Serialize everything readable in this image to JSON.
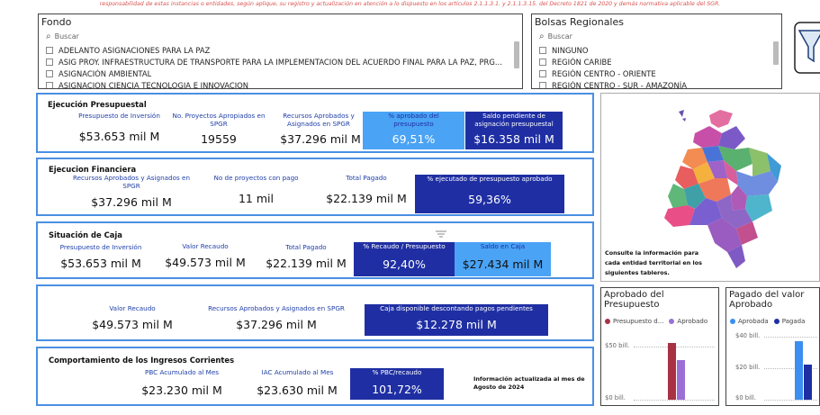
{
  "disclaimer": "responsabilidad de estas instancias o entidades, según aplique, su registro y actualización en atención a lo dispuesto en los artículos 2.1.1.3.1. y 2.1.1.3.15. del Decreto 1821 de 2020 y demás normativa aplicable del SGR.",
  "fondo": {
    "title": "Fondo",
    "search_placeholder": "Buscar",
    "options": [
      "ADELANTO ASIGNACIONES PARA LA PAZ",
      "ASIG PROY. INFRAESTRUCTURA DE TRANSPORTE PARA LA IMPLEMENTACION DEL ACUERDO FINAL PARA LA PAZ, PRG...",
      "ASIGNACIÓN AMBIENTAL",
      "ASIGNACION CIENCIA TECNOLOGIA E INNOVACION"
    ]
  },
  "bolsas": {
    "title": "Bolsas Regionales",
    "search_placeholder": "Buscar",
    "options": [
      "NINGUNO",
      "REGIÓN CARIBE",
      "REGIÓN CENTRO - ORIENTE",
      "REGIÓN CENTRO - SUR - AMAZONÍA"
    ]
  },
  "ejecucion_presupuestal": {
    "title": "Ejecución Presupuestal",
    "kpis": [
      {
        "label": "Presupuesto de Inversión",
        "value": "$53.653 mil M"
      },
      {
        "label": "No. Proyectos Apropiados en SPGR",
        "value": "19559"
      },
      {
        "label": "Recursos Aprobados y Asignados en SPGR",
        "value": "$37.296 mil M"
      },
      {
        "label": "% aprobado del presupuesto",
        "value": "69,51%"
      },
      {
        "label": "Saldo pendiente de asignación presupuestal",
        "value": "$16.358 mil M"
      }
    ]
  },
  "ejecucion_financiera": {
    "title": "Ejecucion Financiera",
    "kpis": [
      {
        "label": "Recursos Aprobados y Asignados en SPGR",
        "value": "$37.296 mil M"
      },
      {
        "label": "No de proyectos con pago",
        "value": "11 mil"
      },
      {
        "label": "Total Pagado",
        "value": "$22.139 mil M"
      },
      {
        "label": "% ejecutado de presupuesto aprobado",
        "value": "59,36%"
      }
    ]
  },
  "situacion_caja": {
    "title": "Situación de Caja",
    "kpis": [
      {
        "label": "Presupuesto de Inversión",
        "value": "$53.653 mil M"
      },
      {
        "label": "Valor Recaudo",
        "value": "$49.573 mil M"
      },
      {
        "label": "Total Pagado",
        "value": "$22.139 mil M"
      },
      {
        "label": "% Recaudo / Presupuesto",
        "value": "92,40%"
      },
      {
        "label": "Saldo en Caja",
        "value": "$27.434 mil M"
      }
    ]
  },
  "caja_disponible": {
    "kpis": [
      {
        "label": "Valor Recaudo",
        "value": "$49.573 mil M"
      },
      {
        "label": "Recursos Aprobados y Asignados en SPGR",
        "value": "$37.296 mil M"
      },
      {
        "label": "Caja disponible descontando pagos pendientes",
        "value": "$12.278 mil M"
      }
    ]
  },
  "ingresos_corrientes": {
    "title": "Comportamiento de los Ingresos Corrientes",
    "kpis": [
      {
        "label": "PBC Acumulado al Mes",
        "value": "$23.230 mil M"
      },
      {
        "label": "IAC Acumulado al Mes",
        "value": "$23.630 mil M"
      },
      {
        "label": "% PBC/recaudo",
        "value": "101,72%"
      }
    ],
    "note": "Información actualizada al mes de Agosto de 2024"
  },
  "map": {
    "note": "Consulte la información para cada entidad territorial en los siguientes tableros."
  },
  "colors": {
    "panel_border": "#4a90e2",
    "card_light": "#4aa3f5",
    "card_dark": "#1f2fa3",
    "presupuesto": "#a83244",
    "aprobado": "#9b6fd6",
    "aprobado2": "#3b8ff0",
    "pagada": "#1f2fa3"
  },
  "chart_data": [
    {
      "type": "bar",
      "title": "Aprobado del Presupuesto",
      "categories": [
        ""
      ],
      "series": [
        {
          "name": "Presupuesto d...",
          "values": [
            53.653
          ]
        },
        {
          "name": "Aprobado",
          "values": [
            37.296
          ]
        }
      ],
      "yticks": [
        "$0 bill.",
        "$50 bill."
      ],
      "ylim": [
        0,
        60
      ]
    },
    {
      "type": "bar",
      "title": "Pagado del valor Aprobado",
      "categories": [
        ""
      ],
      "series": [
        {
          "name": "Aprobada",
          "values": [
            37.296
          ]
        },
        {
          "name": "Pagada",
          "values": [
            22.139
          ]
        }
      ],
      "yticks": [
        "$0 bill.",
        "$20 bill.",
        "$40 bill."
      ],
      "ylim": [
        0,
        42
      ]
    }
  ]
}
